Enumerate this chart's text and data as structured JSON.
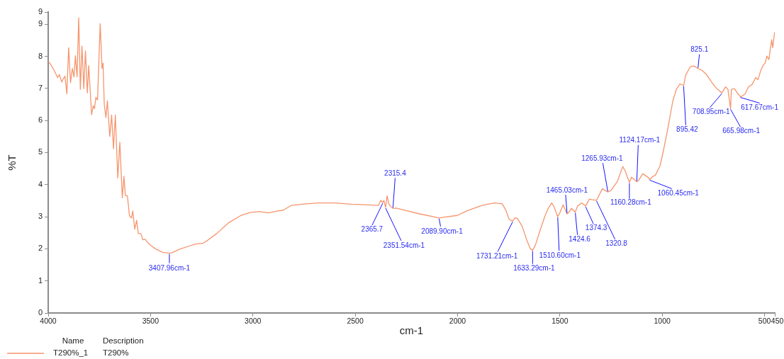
{
  "chart_data": {
    "type": "line",
    "xlabel": "cm-1",
    "ylabel": "%T",
    "x": [
      4000,
      3988,
      3971,
      3954,
      3945,
      3934,
      3925,
      3918,
      3909,
      3900,
      3891,
      3882,
      3874,
      3867,
      3859,
      3851,
      3843,
      3835,
      3826,
      3818,
      3809,
      3802,
      3788,
      3780,
      3774,
      3767,
      3759,
      3746,
      3737,
      3732,
      3726,
      3718,
      3711,
      3699,
      3690,
      3681,
      3672,
      3660,
      3650,
      3638,
      3630,
      3623,
      3613,
      3603,
      3593,
      3587,
      3577,
      3568,
      3560,
      3547,
      3537,
      3526,
      3513,
      3499,
      3476,
      3441,
      3407.96,
      3395,
      3361,
      3314,
      3280,
      3245,
      3222,
      3176,
      3119,
      3061,
      3015,
      2969,
      2923,
      2888,
      2853,
      2813,
      2761,
      2681,
      2600,
      2519,
      2439,
      2387,
      2375,
      2365.7,
      2360,
      2351.54,
      2344,
      2336,
      2328,
      2315.4,
      2300,
      2255,
      2186,
      2117,
      2089.9,
      2070,
      2001,
      1955,
      1886,
      1863,
      1828,
      1817,
      1782,
      1765,
      1748,
      1731.21,
      1719,
      1707,
      1684,
      1661,
      1644,
      1633.29,
      1620,
      1598,
      1574,
      1557,
      1540,
      1530,
      1510.6,
      1499,
      1484,
      1465.03,
      1460,
      1443,
      1424.6,
      1414,
      1393,
      1374.3,
      1356,
      1340,
      1320.8,
      1293,
      1265.93,
      1250,
      1219,
      1193,
      1181,
      1160.28,
      1150,
      1124.17,
      1117,
      1095,
      1069,
      1060.45,
      1047,
      1034,
      1011,
      994,
      971,
      965,
      948,
      931,
      913,
      895.42,
      885,
      862,
      845,
      825.1,
      805,
      782,
      759,
      736,
      708.95,
      690,
      679,
      665.98,
      662,
      647,
      630,
      617.67,
      605,
      595,
      578,
      561,
      543,
      532,
      520,
      508,
      497,
      489,
      479,
      470,
      465,
      460,
      451
    ],
    "series": [
      {
        "name": "T290%_1",
        "color": "#f6956d",
        "values": [
          7.85,
          7.75,
          7.56,
          7.34,
          7.43,
          7.2,
          7.31,
          7.38,
          6.83,
          8.27,
          7.18,
          7.62,
          7.36,
          8.02,
          7.36,
          9.2,
          6.97,
          8.32,
          6.99,
          8.17,
          6.86,
          7.71,
          6.18,
          6.46,
          6.37,
          6.72,
          6.64,
          9.02,
          7.62,
          7.79,
          6.5,
          6.09,
          6.61,
          5.5,
          6.17,
          5.12,
          6.17,
          4.21,
          5.32,
          3.59,
          4.26,
          3.66,
          3.65,
          3.03,
          2.96,
          3.18,
          2.61,
          2.89,
          2.48,
          2.47,
          2.28,
          2.3,
          2.19,
          2.11,
          2.0,
          1.89,
          1.86,
          1.88,
          1.98,
          2.08,
          2.15,
          2.17,
          2.26,
          2.48,
          2.81,
          3.03,
          3.13,
          3.16,
          3.12,
          3.17,
          3.2,
          3.35,
          3.39,
          3.43,
          3.43,
          3.39,
          3.37,
          3.35,
          3.51,
          3.44,
          3.51,
          3.29,
          3.65,
          3.4,
          3.33,
          3.26,
          3.27,
          3.2,
          3.09,
          3.0,
          2.96,
          2.98,
          3.04,
          3.18,
          3.34,
          3.38,
          3.42,
          3.43,
          3.4,
          3.22,
          2.92,
          2.86,
          2.97,
          2.94,
          2.7,
          2.26,
          2.0,
          1.95,
          2.11,
          2.55,
          3.0,
          3.26,
          3.43,
          3.33,
          3.0,
          3.14,
          3.37,
          3.09,
          3.11,
          3.26,
          3.14,
          3.33,
          3.43,
          3.33,
          3.55,
          3.53,
          3.51,
          3.87,
          3.77,
          3.82,
          4.1,
          4.56,
          4.43,
          4.07,
          4.23,
          4.09,
          4.12,
          4.34,
          4.23,
          4.16,
          4.25,
          4.29,
          4.58,
          5.06,
          5.8,
          6.02,
          6.61,
          6.97,
          7.14,
          7.09,
          7.42,
          7.68,
          7.7,
          7.62,
          7.56,
          7.42,
          7.2,
          7.01,
          6.86,
          7.05,
          6.97,
          6.37,
          6.97,
          6.99,
          6.83,
          6.74,
          6.78,
          6.83,
          7.05,
          7.12,
          7.34,
          7.27,
          7.53,
          7.71,
          7.79,
          8.01,
          7.9,
          8.3,
          8.52,
          8.27,
          8.74
        ]
      }
    ],
    "xlim": [
      4000,
      450
    ],
    "xticks": [
      4000,
      3500,
      3000,
      2500,
      2000,
      1500,
      1000,
      500,
      450
    ],
    "ylim": [
      0,
      9.38
    ],
    "yticks": [
      0,
      1,
      2,
      3,
      4,
      5,
      6,
      7,
      8,
      9,
      {
        "value": 9.38,
        "label": "9"
      }
    ],
    "legend": "bottom left",
    "legend_title": "Name",
    "annotations": [
      {
        "text": "3407.96cm-1",
        "x": 3407.96,
        "y": 1.86
      },
      {
        "text": "2365.7",
        "x": 2365.7,
        "y": 3.44
      },
      {
        "text": "2351.54cm-1",
        "x": 2351.54,
        "y": 3.29
      },
      {
        "text": "2315.4",
        "x": 2315.4,
        "y": 3.26
      },
      {
        "text": "2089.90cm-1",
        "x": 2089.9,
        "y": 2.96
      },
      {
        "text": "1731.21cm-1",
        "x": 1731.21,
        "y": 2.86
      },
      {
        "text": "1633.29cm-1",
        "x": 1633.29,
        "y": 1.95
      },
      {
        "text": "1510.60cm-1",
        "x": 1510.6,
        "y": 3.0
      },
      {
        "text": "1465.03cm-1",
        "x": 1465.03,
        "y": 3.09
      },
      {
        "text": "1424.6",
        "x": 1424.6,
        "y": 3.14
      },
      {
        "text": "1374.3",
        "x": 1374.3,
        "y": 3.33
      },
      {
        "text": "1320.8",
        "x": 1320.8,
        "y": 3.51
      },
      {
        "text": "1265.93cm-1",
        "x": 1265.93,
        "y": 3.77
      },
      {
        "text": "1160.28cm-1",
        "x": 1160.28,
        "y": 4.07
      },
      {
        "text": "1124.17cm-1",
        "x": 1124.17,
        "y": 4.09
      },
      {
        "text": "1060.45cm-1",
        "x": 1060.45,
        "y": 4.16
      },
      {
        "text": "895.42",
        "x": 895.42,
        "y": 7.09
      },
      {
        "text": "825.1",
        "x": 825.1,
        "y": 7.62
      },
      {
        "text": "708.95cm-1",
        "x": 708.95,
        "y": 6.86
      },
      {
        "text": "665.98cm-1",
        "x": 665.98,
        "y": 6.37
      },
      {
        "text": "617.67cm-1",
        "x": 617.67,
        "y": 6.74
      },
      "Description",
      "T290%"
    ]
  }
}
